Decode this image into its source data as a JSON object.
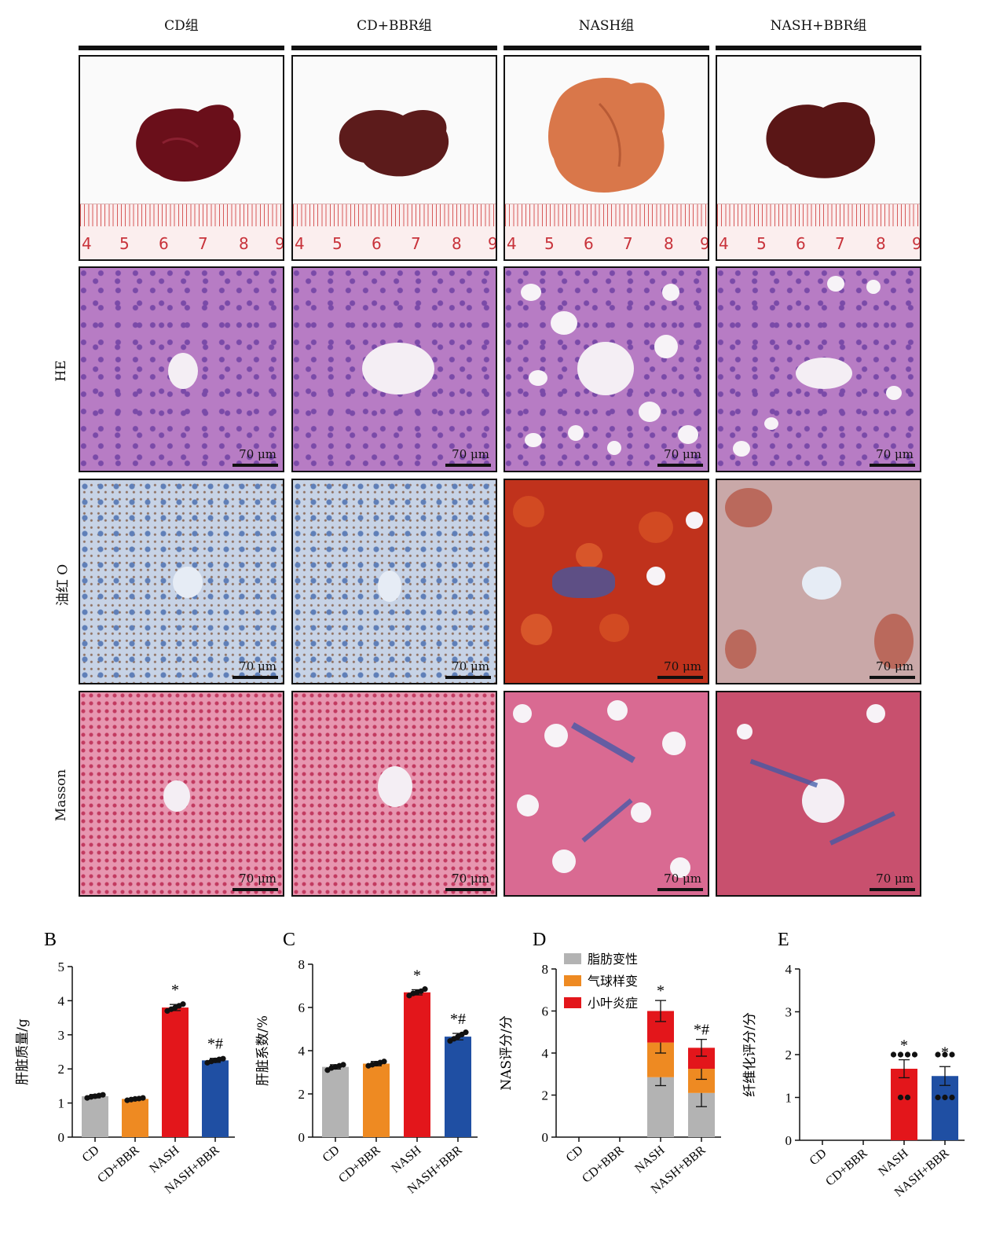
{
  "groups": {
    "headers": [
      "CD组",
      "CD+BBR组",
      "NASH组",
      "NASH+BBR组"
    ]
  },
  "rows": {
    "he": "HE",
    "oil": "油红 O",
    "masson": "Masson"
  },
  "scale_label": "70 μm",
  "ruler_numbers": [
    [
      "4",
      "5",
      "6",
      "7",
      "8",
      "9"
    ],
    [
      "4",
      "5",
      "6",
      "7",
      "8",
      "9"
    ],
    [
      "4",
      "5",
      "6",
      "7",
      "8",
      "9"
    ],
    [
      "4",
      "5",
      "6",
      "7",
      "8",
      "9"
    ]
  ],
  "colors": {
    "CD": "#b3b3b3",
    "CD+BBR": "#ee8a22",
    "NASH": "#e3161b",
    "NASH+BBR": "#1f4fa3",
    "steatosis": "#b3b3b3",
    "ballooning": "#ee8a22",
    "inflammation": "#e3161b"
  },
  "chart_data": [
    {
      "panel": "B",
      "type": "bar",
      "categories": [
        "CD",
        "CD+BBR",
        "NASH",
        "NASH+BBR"
      ],
      "values": [
        1.2,
        1.12,
        3.8,
        2.25
      ],
      "errors": [
        0.05,
        0.04,
        0.09,
        0.06
      ],
      "points": [
        [
          1.15,
          1.18,
          1.2,
          1.22,
          1.24
        ],
        [
          1.08,
          1.1,
          1.12,
          1.13,
          1.15
        ],
        [
          3.7,
          3.75,
          3.8,
          3.85,
          3.9
        ],
        [
          2.18,
          2.22,
          2.25,
          2.28,
          2.3
        ]
      ],
      "annotations": [
        "",
        "",
        "*",
        "*#"
      ],
      "ylabel": "肝脏质量/g",
      "ylim": [
        0,
        5
      ],
      "yticks": [
        "0",
        "1",
        "2",
        "3",
        "4",
        "5"
      ]
    },
    {
      "panel": "C",
      "type": "bar",
      "categories": [
        "CD",
        "CD+BBR",
        "NASH",
        "NASH+BBR"
      ],
      "values": [
        3.25,
        3.4,
        6.7,
        4.65
      ],
      "errors": [
        0.1,
        0.1,
        0.12,
        0.15
      ],
      "points": [
        [
          3.1,
          3.2,
          3.25,
          3.3,
          3.35
        ],
        [
          3.3,
          3.35,
          3.4,
          3.45,
          3.5
        ],
        [
          6.55,
          6.65,
          6.7,
          6.75,
          6.85
        ],
        [
          4.45,
          4.55,
          4.65,
          4.75,
          4.85
        ]
      ],
      "annotations": [
        "",
        "",
        "*",
        "*#"
      ],
      "ylabel": "肝脏系数/%",
      "ylim": [
        0,
        8
      ],
      "yticks": [
        "0",
        "2",
        "4",
        "6",
        "8"
      ]
    },
    {
      "panel": "D",
      "type": "bar",
      "stacked": true,
      "categories": [
        "CD",
        "CD+BBR",
        "NASH",
        "NASH+BBR"
      ],
      "series": [
        {
          "name": "脂肪变性",
          "values": [
            0,
            0,
            2.85,
            2.1
          ],
          "errors": [
            0,
            0,
            0.4,
            0.65
          ]
        },
        {
          "name": "气球样变",
          "values": [
            0,
            0,
            1.65,
            1.15
          ],
          "errors": [
            0,
            0,
            0.5,
            0.5
          ]
        },
        {
          "name": "小叶炎症",
          "values": [
            0,
            0,
            1.5,
            1.0
          ],
          "errors": [
            0,
            0,
            0.5,
            0.4
          ]
        }
      ],
      "annotations": [
        "",
        "",
        "*",
        "*#"
      ],
      "ylabel": "NAS评分/分",
      "ylim": [
        0,
        8
      ],
      "yticks": [
        "0",
        "2",
        "4",
        "6",
        "8"
      ],
      "legend": "top-left"
    },
    {
      "panel": "E",
      "type": "bar",
      "categories": [
        "CD",
        "CD+BBR",
        "NASH",
        "NASH+BBR"
      ],
      "values": [
        0,
        0,
        1.67,
        1.5
      ],
      "errors": [
        0,
        0,
        0.21,
        0.22
      ],
      "points": [
        [],
        [],
        [
          1,
          1,
          2,
          2,
          2,
          2
        ],
        [
          1,
          1,
          1,
          2,
          2,
          2
        ]
      ],
      "annotations": [
        "",
        "",
        "*",
        "*"
      ],
      "ylabel": "纤维化评分/分",
      "ylim": [
        0,
        4
      ],
      "yticks": [
        "0",
        "1",
        "2",
        "3",
        "4"
      ]
    }
  ]
}
